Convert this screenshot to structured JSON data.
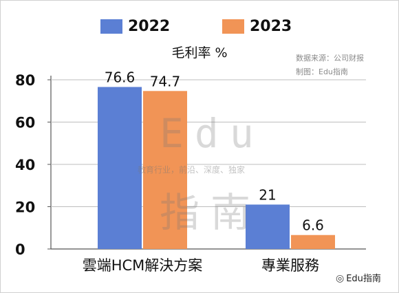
{
  "legend": [
    {
      "label": "2022",
      "color": "#5b7fd4"
    },
    {
      "label": "2023",
      "color": "#f19456"
    }
  ],
  "subtitle": "毛利率 %",
  "source_lines": [
    "数据来源：公司财报",
    "制图：Edu指南"
  ],
  "watermark": {
    "big_top": "Edu",
    "big_bottom": "指南",
    "tagline": "教育行业，前沿、深度、独家"
  },
  "footer": {
    "icon": "wechat-icon",
    "text": "Edu指南"
  },
  "chart_data": {
    "type": "bar",
    "categories": [
      "雲端HCM解決方案",
      "專業服務"
    ],
    "series": [
      {
        "name": "2022",
        "values": [
          76.6,
          21
        ],
        "color": "#5b7fd4"
      },
      {
        "name": "2023",
        "values": [
          74.7,
          6.6
        ],
        "color": "#f19456"
      }
    ],
    "value_labels": [
      [
        "76.6",
        "21"
      ],
      [
        "74.7",
        "6.6"
      ]
    ],
    "yticks": [
      "0",
      "20",
      "40",
      "60",
      "80"
    ],
    "ylim": [
      0,
      80
    ],
    "grid": true,
    "legend_position": "top"
  }
}
